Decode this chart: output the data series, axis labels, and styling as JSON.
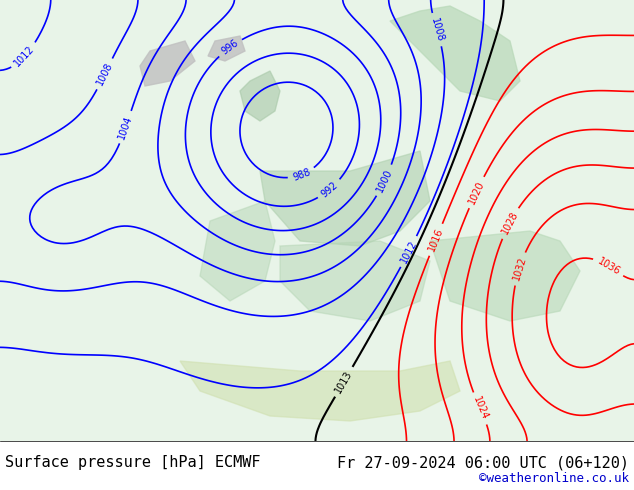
{
  "title_left": "Surface pressure [hPa] ECMWF",
  "title_right": "Fr 27-09-2024 06:00 UTC (06+120)",
  "credit": "©weatheronline.co.uk",
  "bg_color": "#e8f4e8",
  "land_color": "#c8e6c8",
  "sea_color": "#d0e8f0",
  "font_family": "monospace",
  "footer_fontsize": 11,
  "credit_color": "#0000cc",
  "text_color": "#000000",
  "fig_width": 6.34,
  "fig_height": 4.9,
  "dpi": 100
}
